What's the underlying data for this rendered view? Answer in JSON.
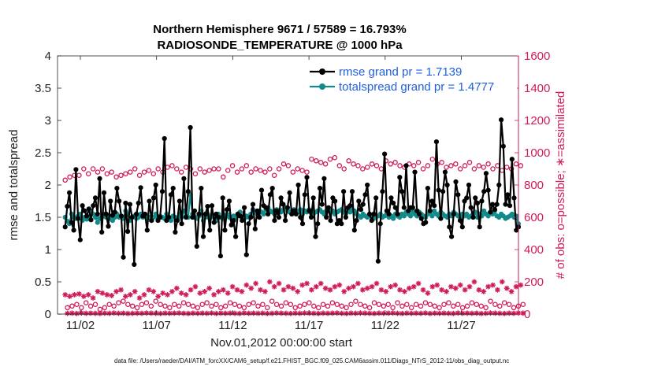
{
  "chart_data": {
    "type": "line",
    "title_line1": "Northern Hemisphere 9671 / 57589 = 16.793%",
    "title_line2": "RADIOSONDE_TEMPERATURE @ 1000 hPa",
    "xlabel": "Nov.01,2012 00:00:00 start",
    "ylabel_left": "rmse and totalspread",
    "ylabel_right": "# of obs: o=possible; ∗=assimilated",
    "footer": "data file: /Users/raeder/DAI/ATM_forcXX/CAM6_setup/f.e21.FHIST_BGC.f09_025.CAM6assim.011/Diags_NTrS_2012-11/obs_diag_output.nc",
    "x_range": [
      0.5,
      30.75
    ],
    "ylim_left": [
      0,
      4
    ],
    "ylim_right": [
      0,
      1600
    ],
    "x_ticks": [
      {
        "value": 2,
        "label": "11/02"
      },
      {
        "value": 7,
        "label": "11/07"
      },
      {
        "value": 12,
        "label": "11/12"
      },
      {
        "value": 17,
        "label": "11/17"
      },
      {
        "value": 22,
        "label": "11/22"
      },
      {
        "value": 27,
        "label": "11/27"
      }
    ],
    "y_ticks_left": [
      {
        "value": 0,
        "label": "0"
      },
      {
        "value": 0.5,
        "label": "0.5"
      },
      {
        "value": 1,
        "label": "1"
      },
      {
        "value": 1.5,
        "label": "1.5"
      },
      {
        "value": 2,
        "label": "2"
      },
      {
        "value": 2.5,
        "label": "2.5"
      },
      {
        "value": 3,
        "label": "3"
      },
      {
        "value": 3.5,
        "label": "3.5"
      },
      {
        "value": 4,
        "label": "4"
      }
    ],
    "y_ticks_right": [
      {
        "value": 0,
        "label": "0"
      },
      {
        "value": 200,
        "label": "200"
      },
      {
        "value": 400,
        "label": "400"
      },
      {
        "value": 600,
        "label": "600"
      },
      {
        "value": 800,
        "label": "800"
      },
      {
        "value": 1000,
        "label": "1000"
      },
      {
        "value": 1200,
        "label": "1200"
      },
      {
        "value": 1400,
        "label": "1400"
      },
      {
        "value": 1600,
        "label": "1600"
      }
    ],
    "colors": {
      "rmse": "#000000",
      "spread": "#138a8a",
      "obs": "#d01a5a",
      "legend_text": "#1f5fe0"
    },
    "series": [
      {
        "name": "rmse grand pr = 1.7139",
        "values": [
          1.35,
          1.67,
          1.88,
          1.42,
          1.3,
          2.24,
          1.48,
          1.15,
          1.68,
          1.6,
          1.52,
          1.63,
          1.46,
          1.68,
          1.8,
          1.55,
          2.1,
          1.27,
          1.88,
          1.55,
          1.36,
          1.75,
          1.53,
          1.58,
          1.95,
          1.75,
          1.52,
          0.88,
          1.72,
          1.28,
          1.7,
          1.5,
          0.77,
          1.55,
          1.72,
          1.96,
          1.52,
          1.55,
          1.3,
          1.75,
          1.45,
          1.8,
          2.0,
          1.45,
          1.5,
          1.9,
          2.72,
          1.45,
          1.5,
          1.85,
          1.95,
          1.27,
          1.45,
          1.75,
          1.4,
          2.1,
          1.5,
          1.9,
          2.89,
          1.5,
          1.6,
          1.05,
          1.55,
          1.95,
          1.2,
          1.55,
          1.67,
          1.3,
          1.68,
          1.42,
          1.55,
          1.5,
          0.9,
          1.8,
          1.3,
          1.62,
          1.75,
          1.38,
          1.45,
          1.2,
          1.55,
          1.52,
          1.45,
          1.65,
          0.92,
          1.4,
          1.5,
          1.7,
          1.32,
          1.6,
          1.5,
          1.92,
          1.68,
          1.65,
          1.55,
          1.85,
          1.95,
          1.45,
          1.6,
          1.5,
          1.8,
          1.7,
          1.45,
          1.65,
          1.88,
          1.55,
          1.6,
          1.55,
          2.0,
          1.5,
          1.4,
          1.85,
          2.12,
          1.6,
          1.5,
          1.8,
          1.2,
          1.4,
          1.95,
          1.7,
          2.1,
          1.5,
          1.65,
          1.45,
          1.8,
          1.75,
          1.4,
          1.45,
          1.4,
          1.9,
          1.5,
          1.65,
          1.68,
          1.9,
          1.3,
          1.45,
          1.75,
          1.62,
          1.7,
          1.85,
          2.0,
          1.55,
          1.45,
          1.55,
          1.8,
          0.82,
          1.4,
          1.9,
          2.48,
          1.6,
          1.55,
          1.8,
          1.72,
          1.65,
          1.55,
          2.12,
          1.9,
          1.65,
          2.3,
          1.6,
          1.65,
          1.65,
          2.2,
          1.6,
          1.55,
          1.48,
          1.4,
          1.42,
          1.95,
          1.6,
          1.75,
          1.68,
          2.67,
          1.92,
          1.48,
          1.9,
          2.2,
          2.0,
          1.35,
          1.2,
          1.55,
          2.05,
          1.85,
          1.45,
          1.35,
          1.75,
          1.8,
          2.0,
          1.65,
          1.5,
          1.8,
          1.72,
          1.35,
          1.75,
          1.9,
          2.18,
          1.92,
          1.58,
          1.7,
          1.62,
          1.7,
          2.0,
          3.01,
          2.6,
          1.7,
          1.85,
          1.68,
          2.4,
          1.8,
          1.3,
          1.35
        ]
      },
      {
        "name": "totalspread grand pr = 1.4777",
        "values": [
          1.5,
          1.44,
          1.4,
          1.55,
          1.5,
          1.48,
          1.52,
          1.55,
          1.45,
          1.5,
          1.47,
          1.5,
          1.6,
          1.55,
          1.5,
          1.42,
          1.48,
          1.5,
          1.55,
          1.5,
          1.52,
          1.48,
          1.45,
          1.5,
          1.55,
          1.5,
          1.52,
          1.48,
          1.6,
          1.55,
          1.45,
          1.5,
          1.52,
          1.48,
          1.5,
          1.55,
          1.5,
          1.52,
          1.48,
          1.5,
          1.45,
          1.5,
          1.55,
          1.48,
          1.52,
          1.5,
          1.48,
          1.55,
          1.5,
          1.45,
          1.52,
          1.5,
          1.48,
          1.55,
          1.5,
          1.6,
          1.52,
          1.5,
          1.85,
          1.55,
          1.5,
          1.48,
          1.52,
          1.6,
          1.45,
          1.5,
          1.55,
          1.48,
          1.52,
          1.5,
          1.45,
          1.55,
          1.5,
          1.48,
          1.52,
          1.55,
          1.5,
          1.48,
          1.52,
          1.5,
          1.55,
          1.58,
          1.5,
          1.48,
          1.52,
          1.5,
          1.55,
          1.62,
          1.58,
          1.55,
          1.6,
          1.58,
          1.55,
          1.62,
          1.65,
          1.6,
          1.58,
          1.55,
          1.62,
          1.6,
          1.58,
          1.62,
          1.65,
          1.6,
          1.58,
          1.55,
          1.62,
          1.6,
          1.58,
          1.62,
          1.55,
          1.6,
          1.58,
          1.62,
          1.6,
          1.55,
          1.58,
          1.6,
          1.62,
          1.58,
          1.55,
          1.6,
          1.62,
          1.58,
          1.6,
          1.55,
          1.58,
          1.6,
          1.62,
          1.58,
          1.55,
          1.6,
          1.58,
          1.62,
          1.6,
          1.55,
          1.52,
          1.5,
          1.55,
          1.52,
          1.5,
          1.55,
          1.52,
          1.48,
          1.5,
          1.52,
          1.55,
          1.5,
          1.52,
          1.55,
          1.5,
          1.52,
          1.48,
          1.55,
          1.52,
          1.5,
          1.55,
          1.52,
          1.58,
          1.55,
          1.52,
          1.6,
          1.55,
          1.52,
          1.58,
          1.55,
          1.52,
          1.5,
          1.55,
          1.58,
          1.52,
          1.6,
          1.55,
          1.52,
          1.58,
          1.55,
          1.52,
          1.5,
          1.55,
          1.52,
          1.58,
          1.55,
          1.52,
          1.5,
          1.55,
          1.52,
          1.55,
          1.5,
          1.52,
          1.55,
          1.58,
          1.5,
          1.55,
          1.52,
          1.6,
          1.55,
          1.52,
          1.58,
          1.55,
          1.6,
          1.52,
          1.5,
          1.55,
          1.52,
          1.48,
          1.5,
          1.52,
          1.55,
          1.5,
          1.52,
          1.4
        ]
      }
    ],
    "obs_possible": [
      830,
      850,
      860,
      860,
      900,
      870,
      900,
      880,
      900,
      870,
      880,
      850,
      860,
      870,
      880,
      900,
      860,
      880,
      890,
      870,
      900,
      880,
      910,
      920,
      900,
      880,
      910,
      900,
      870,
      900,
      880,
      890,
      900,
      900,
      850,
      890,
      920,
      880,
      900,
      920,
      880,
      900,
      890,
      880,
      900,
      860,
      900,
      930,
      920,
      880,
      900,
      890,
      880,
      960,
      950,
      940,
      930,
      960,
      970,
      920,
      900,
      950,
      930,
      920,
      900,
      910,
      930,
      920,
      900,
      950,
      930,
      940,
      920,
      910,
      930,
      920,
      940,
      900,
      920,
      960,
      930,
      940,
      910,
      920,
      930,
      900,
      920,
      940,
      900,
      920,
      910,
      930,
      900,
      920,
      890,
      910,
      900,
      930,
      920
    ],
    "obs_possible_low": [
      40,
      50,
      60,
      40,
      70,
      50,
      60,
      30,
      40,
      60,
      50,
      70,
      80,
      60,
      50,
      40,
      60,
      70,
      50,
      80,
      60,
      50,
      40,
      60,
      50,
      70,
      60,
      50,
      40,
      60,
      70,
      50,
      60,
      40,
      50,
      70,
      60,
      50,
      40,
      60,
      70,
      50,
      60,
      40,
      80,
      60,
      50,
      70,
      60,
      40,
      50,
      60,
      70,
      50,
      40,
      60,
      50,
      70,
      60,
      50,
      40,
      60,
      80,
      60,
      50,
      40,
      70,
      60,
      50,
      60,
      40,
      70,
      50,
      60,
      40,
      60,
      50,
      70,
      60,
      50,
      40,
      60,
      70,
      50,
      60,
      40,
      50,
      70,
      60,
      50,
      40,
      80,
      60,
      50,
      70,
      60,
      40,
      50,
      60
    ],
    "obs_assimilated": [
      120,
      110,
      120,
      125,
      110,
      120,
      100,
      140,
      130,
      120,
      115,
      140,
      150,
      110,
      120,
      140,
      100,
      120,
      150,
      140,
      110,
      130,
      120,
      140,
      160,
      130,
      120,
      150,
      170,
      130,
      140,
      160,
      120,
      140,
      150,
      130,
      170,
      150,
      140,
      180,
      160,
      190,
      150,
      140,
      200,
      170,
      190,
      150,
      170,
      160,
      140,
      180,
      190,
      150,
      170,
      190,
      160,
      150,
      170,
      180,
      140,
      160,
      170,
      190,
      150,
      160,
      170,
      190,
      150,
      140,
      170,
      180,
      150,
      140,
      160,
      170,
      190,
      150,
      130,
      170,
      180,
      150,
      140,
      170,
      160,
      180,
      150,
      170,
      200,
      150,
      140,
      170,
      180,
      150,
      200,
      160,
      140,
      170,
      180
    ],
    "obs_assimilated_low": [
      5,
      6,
      4,
      7,
      5,
      6,
      5,
      4,
      6,
      5,
      7,
      5,
      6,
      4,
      5,
      6,
      5,
      7,
      6,
      5,
      4,
      6,
      5,
      6,
      7,
      5,
      4,
      6,
      5,
      6,
      5,
      7,
      4,
      6,
      5,
      6,
      5,
      4,
      7,
      5,
      6,
      5,
      6,
      4,
      5,
      7,
      6,
      5,
      4,
      6,
      5,
      7,
      6,
      5,
      4,
      6,
      5,
      6,
      7,
      5,
      4,
      6,
      5,
      7,
      6,
      5,
      4,
      6,
      5,
      6,
      7,
      5,
      4,
      6,
      5,
      6,
      5,
      7,
      4,
      6,
      5,
      6,
      5,
      4,
      7,
      5,
      6,
      5,
      6,
      4,
      5,
      7,
      6,
      5,
      4,
      6,
      5,
      7,
      6
    ]
  }
}
